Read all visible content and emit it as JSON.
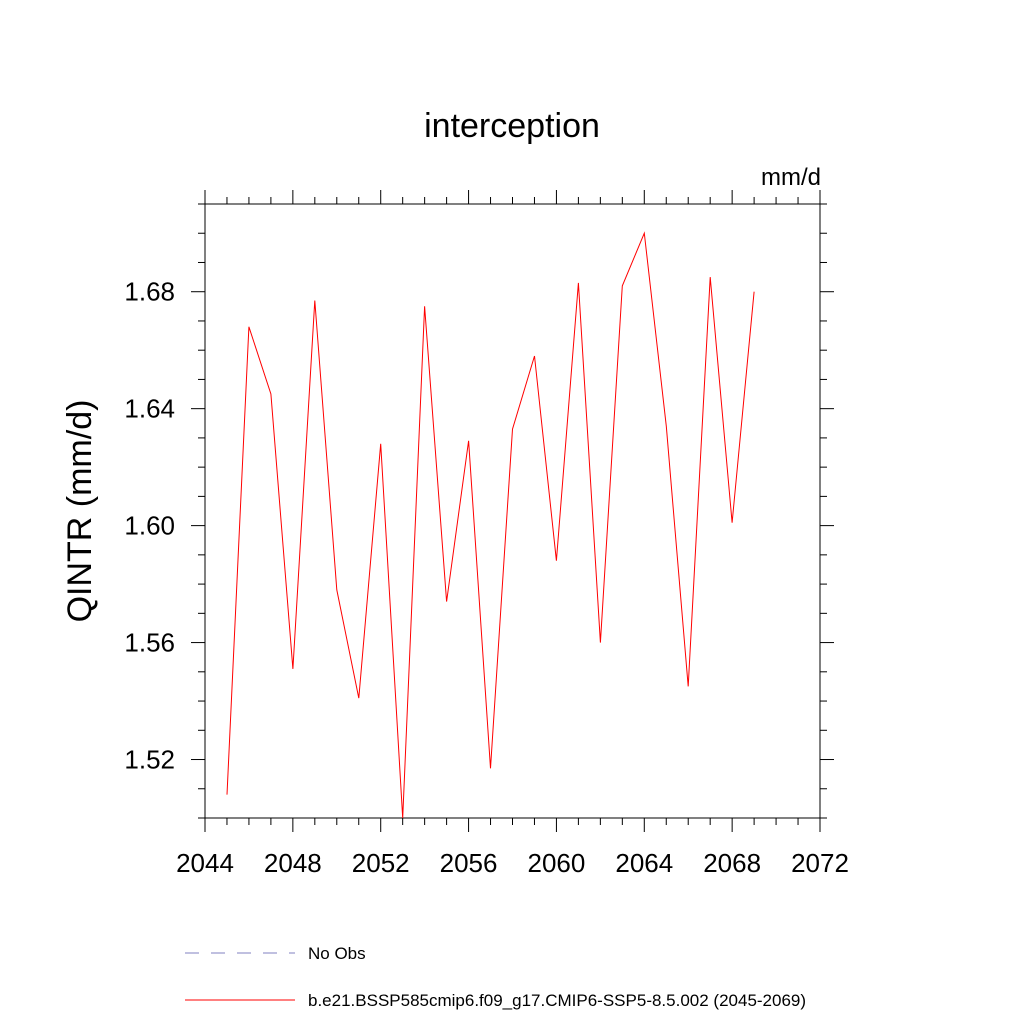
{
  "chart_data": {
    "type": "line",
    "title": "interception",
    "units": "mm/d",
    "xlabel": "",
    "ylabel": "QINTR  (mm/d)",
    "xlim": [
      2044,
      2072
    ],
    "ylim": [
      1.5,
      1.71
    ],
    "xticks": [
      2044,
      2048,
      2052,
      2056,
      2060,
      2064,
      2068,
      2072
    ],
    "xtick_labels": [
      "2044",
      "2048",
      "2052",
      "2056",
      "2060",
      "2064",
      "2068",
      "2072"
    ],
    "yticks": [
      1.52,
      1.56,
      1.6,
      1.64,
      1.68
    ],
    "ytick_labels": [
      "1.52",
      "1.56",
      "1.60",
      "1.64",
      "1.68"
    ],
    "grid": false,
    "series": [
      {
        "name": "b.e21.BSSP585cmip6.f09_g17.CMIP6-SSP5-8.5.002 (2045-2069)",
        "color": "#ff0000",
        "style": "solid",
        "x": [
          2045,
          2046,
          2047,
          2048,
          2049,
          2050,
          2051,
          2052,
          2053,
          2054,
          2055,
          2056,
          2057,
          2058,
          2059,
          2060,
          2061,
          2062,
          2063,
          2064,
          2065,
          2066,
          2067,
          2068,
          2069
        ],
        "values": [
          1.508,
          1.668,
          1.645,
          1.551,
          1.677,
          1.578,
          1.541,
          1.628,
          1.5,
          1.675,
          1.574,
          1.629,
          1.517,
          1.633,
          1.658,
          1.588,
          1.683,
          1.56,
          1.682,
          1.7,
          1.634,
          1.545,
          1.685,
          1.601,
          1.68
        ]
      }
    ],
    "legend": [
      {
        "label": "No Obs",
        "color": "#8080c0",
        "style": "dashed"
      },
      {
        "label": "b.e21.BSSP585cmip6.f09_g17.CMIP6-SSP5-8.5.002 (2045-2069)",
        "color": "#ff0000",
        "style": "solid"
      }
    ],
    "legend_position": "bottom"
  }
}
